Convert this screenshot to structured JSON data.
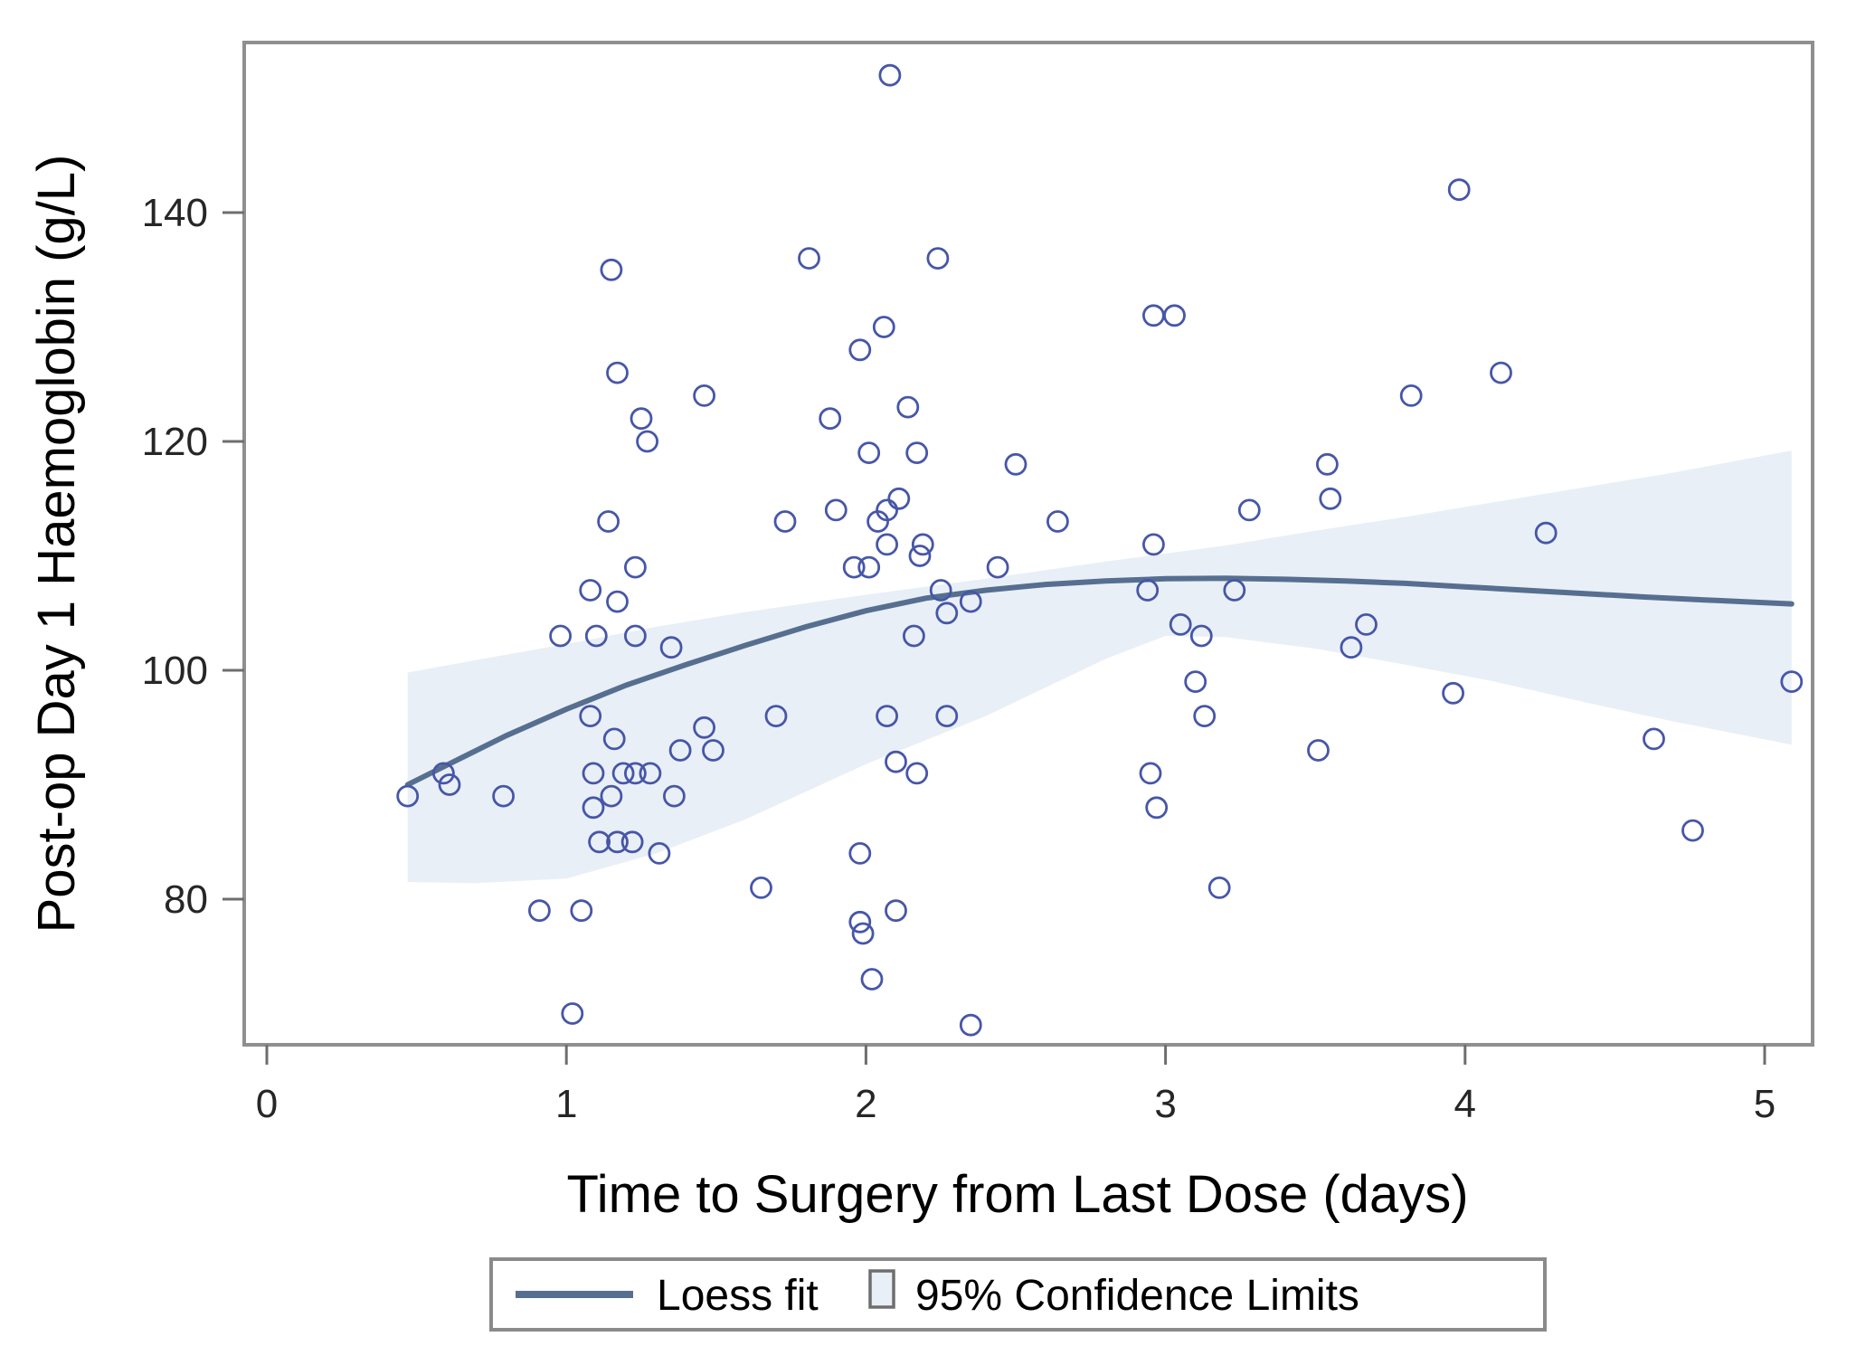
{
  "chart_data": {
    "type": "scatter",
    "title": "",
    "xlabel": "Time to Surgery from Last Dose (days)",
    "ylabel": "Post-op Day 1 Haemoglobin (g/L)",
    "x_ticks": [
      0,
      1,
      2,
      3,
      4,
      5
    ],
    "y_ticks": [
      80,
      100,
      120,
      140
    ],
    "xlim": [
      -0.08,
      5.16
    ],
    "ylim": [
      67.2,
      154.9
    ],
    "grid": false,
    "legend_position": "bottom",
    "series": [
      {
        "name": "observations",
        "marker": "open-circle",
        "points": [
          [
            0.47,
            89
          ],
          [
            0.59,
            91
          ],
          [
            0.61,
            90
          ],
          [
            0.79,
            89
          ],
          [
            0.91,
            79
          ],
          [
            0.98,
            103
          ],
          [
            1.02,
            70
          ],
          [
            1.05,
            79
          ],
          [
            1.08,
            107
          ],
          [
            1.08,
            96
          ],
          [
            1.09,
            91
          ],
          [
            1.09,
            88
          ],
          [
            1.1,
            103
          ],
          [
            1.11,
            85
          ],
          [
            1.14,
            113
          ],
          [
            1.15,
            135
          ],
          [
            1.15,
            89
          ],
          [
            1.16,
            94
          ],
          [
            1.17,
            126
          ],
          [
            1.17,
            106
          ],
          [
            1.17,
            85
          ],
          [
            1.19,
            91
          ],
          [
            1.22,
            85
          ],
          [
            1.23,
            109
          ],
          [
            1.23,
            103
          ],
          [
            1.23,
            91
          ],
          [
            1.25,
            122
          ],
          [
            1.27,
            120
          ],
          [
            1.28,
            91
          ],
          [
            1.31,
            84
          ],
          [
            1.35,
            102
          ],
          [
            1.36,
            89
          ],
          [
            1.38,
            93
          ],
          [
            1.46,
            124
          ],
          [
            1.46,
            95
          ],
          [
            1.49,
            93
          ],
          [
            1.65,
            81
          ],
          [
            1.7,
            96
          ],
          [
            1.73,
            113
          ],
          [
            1.81,
            136
          ],
          [
            1.88,
            122
          ],
          [
            1.9,
            114
          ],
          [
            1.96,
            109
          ],
          [
            1.98,
            128
          ],
          [
            1.98,
            84
          ],
          [
            1.98,
            78
          ],
          [
            1.99,
            77
          ],
          [
            2.01,
            119
          ],
          [
            2.01,
            109
          ],
          [
            2.02,
            73
          ],
          [
            2.04,
            113
          ],
          [
            2.06,
            130
          ],
          [
            2.07,
            114
          ],
          [
            2.07,
            111
          ],
          [
            2.07,
            96
          ],
          [
            2.08,
            152
          ],
          [
            2.1,
            92
          ],
          [
            2.1,
            79
          ],
          [
            2.11,
            115
          ],
          [
            2.14,
            123
          ],
          [
            2.16,
            103
          ],
          [
            2.17,
            119
          ],
          [
            2.17,
            91
          ],
          [
            2.18,
            110
          ],
          [
            2.19,
            111
          ],
          [
            2.24,
            136
          ],
          [
            2.25,
            107
          ],
          [
            2.27,
            105
          ],
          [
            2.27,
            96
          ],
          [
            2.35,
            106
          ],
          [
            2.35,
            69
          ],
          [
            2.44,
            109
          ],
          [
            2.5,
            118
          ],
          [
            2.64,
            113
          ],
          [
            2.94,
            107
          ],
          [
            2.95,
            91
          ],
          [
            2.96,
            131
          ],
          [
            2.96,
            111
          ],
          [
            2.97,
            88
          ],
          [
            3.03,
            131
          ],
          [
            3.05,
            104
          ],
          [
            3.1,
            99
          ],
          [
            3.12,
            103
          ],
          [
            3.13,
            96
          ],
          [
            3.18,
            81
          ],
          [
            3.23,
            107
          ],
          [
            3.28,
            114
          ],
          [
            3.51,
            93
          ],
          [
            3.54,
            118
          ],
          [
            3.55,
            115
          ],
          [
            3.62,
            102
          ],
          [
            3.67,
            104
          ],
          [
            3.82,
            124
          ],
          [
            3.96,
            98
          ],
          [
            3.98,
            142
          ],
          [
            4.12,
            126
          ],
          [
            4.27,
            112
          ],
          [
            4.63,
            94
          ],
          [
            4.76,
            86
          ],
          [
            5.09,
            99
          ]
        ]
      },
      {
        "name": "Loess fit",
        "type": "line",
        "points": [
          [
            0.47,
            90.0
          ],
          [
            0.6,
            91.7
          ],
          [
            0.8,
            94.3
          ],
          [
            1.0,
            96.6
          ],
          [
            1.2,
            98.7
          ],
          [
            1.4,
            100.5
          ],
          [
            1.6,
            102.2
          ],
          [
            1.8,
            103.8
          ],
          [
            2.0,
            105.2
          ],
          [
            2.2,
            106.3
          ],
          [
            2.4,
            107.0
          ],
          [
            2.6,
            107.5
          ],
          [
            2.8,
            107.8
          ],
          [
            3.0,
            108.0
          ],
          [
            3.2,
            108.05
          ],
          [
            3.4,
            107.95
          ],
          [
            3.6,
            107.8
          ],
          [
            3.8,
            107.6
          ],
          [
            4.0,
            107.3
          ],
          [
            4.2,
            107.0
          ],
          [
            4.4,
            106.7
          ],
          [
            4.6,
            106.4
          ],
          [
            4.8,
            106.15
          ],
          [
            5.09,
            105.8
          ]
        ]
      },
      {
        "name": "95% Confidence Limits",
        "type": "band",
        "points_lo_hi": [
          [
            0.47,
            81.5,
            99.8
          ],
          [
            0.7,
            81.4,
            100.9
          ],
          [
            1.0,
            81.8,
            102.3
          ],
          [
            1.3,
            84.0,
            103.8
          ],
          [
            1.6,
            87.0,
            105.1
          ],
          [
            2.0,
            91.8,
            106.6
          ],
          [
            2.4,
            96.0,
            108.0
          ],
          [
            2.8,
            101.0,
            109.5
          ],
          [
            3.0,
            103.0,
            110.2
          ],
          [
            3.2,
            102.9,
            110.9
          ],
          [
            3.5,
            101.9,
            112.2
          ],
          [
            3.8,
            100.5,
            113.4
          ],
          [
            4.1,
            99.0,
            114.7
          ],
          [
            4.4,
            97.2,
            116.0
          ],
          [
            4.7,
            95.5,
            117.3
          ],
          [
            5.09,
            93.5,
            119.2
          ]
        ]
      }
    ]
  },
  "y_axis": {
    "label": "Post-op Day 1 Haemoglobin (g/L)",
    "tick_labels": [
      "80",
      "100",
      "120",
      "140"
    ]
  },
  "x_axis": {
    "label": "Time to Surgery from Last Dose (days)",
    "tick_labels": [
      "0",
      "1",
      "2",
      "3",
      "4",
      "5"
    ]
  },
  "legend": {
    "loess_label": "Loess fit",
    "ci_label": "95% Confidence Limits"
  },
  "colors": {
    "marker": "#4656a8",
    "loess_line": "#566f90",
    "ci_band": "#e9eff6",
    "plot_border": "#8f8f8f",
    "tick": "#6e6e6e",
    "legend_border": "#8a8a8a"
  }
}
